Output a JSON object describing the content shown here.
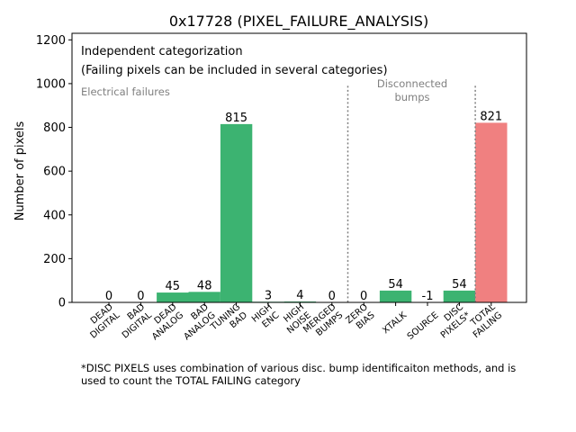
{
  "chart_data": {
    "type": "bar",
    "title": "0x17728 (PIXEL_FAILURE_ANALYSIS)",
    "ylabel": "Number of pixels",
    "xlabel": "",
    "ylim": [
      0,
      1230
    ],
    "yticks": [
      0,
      200,
      400,
      600,
      800,
      1000,
      1200
    ],
    "grid": false,
    "categories": [
      "DEAD\nDIGITAL",
      "BAD\nDIGITAL",
      "DEAD\nANALOG",
      "BAD\nANALOG",
      "TUNING\nBAD",
      "HIGH\nENC",
      "HIGH\nNOISE",
      "MERGED\nBUMPS",
      "ZERO\nBIAS",
      "XTALK",
      "SOURCE",
      "DISC\nPIXELS*",
      "TOTAL\nFAILING"
    ],
    "values": [
      0,
      0,
      45,
      48,
      815,
      3,
      4,
      0,
      0,
      54,
      -1,
      54,
      821
    ],
    "value_labels": [
      "0",
      "0",
      "45",
      "48",
      "815",
      "3",
      "4",
      "0",
      "0",
      "54",
      "-1",
      "54",
      "821"
    ],
    "colors": {
      "normal": "#3cb371",
      "total": "#f08080",
      "divider": "#808080"
    },
    "annotations": {
      "info_line1": "Independent categorization",
      "info_line2": "(Failing pixels can be included in several categories)",
      "section_electrical": "Electrical failures",
      "section_disconnected_line1": "Disconnected",
      "section_disconnected_line2": "bumps"
    }
  },
  "footnote": {
    "line1": "*DISC PIXELS uses combination of various disc. bump identificaiton methods, and is",
    "line2": "used to count the TOTAL FAILING category"
  }
}
